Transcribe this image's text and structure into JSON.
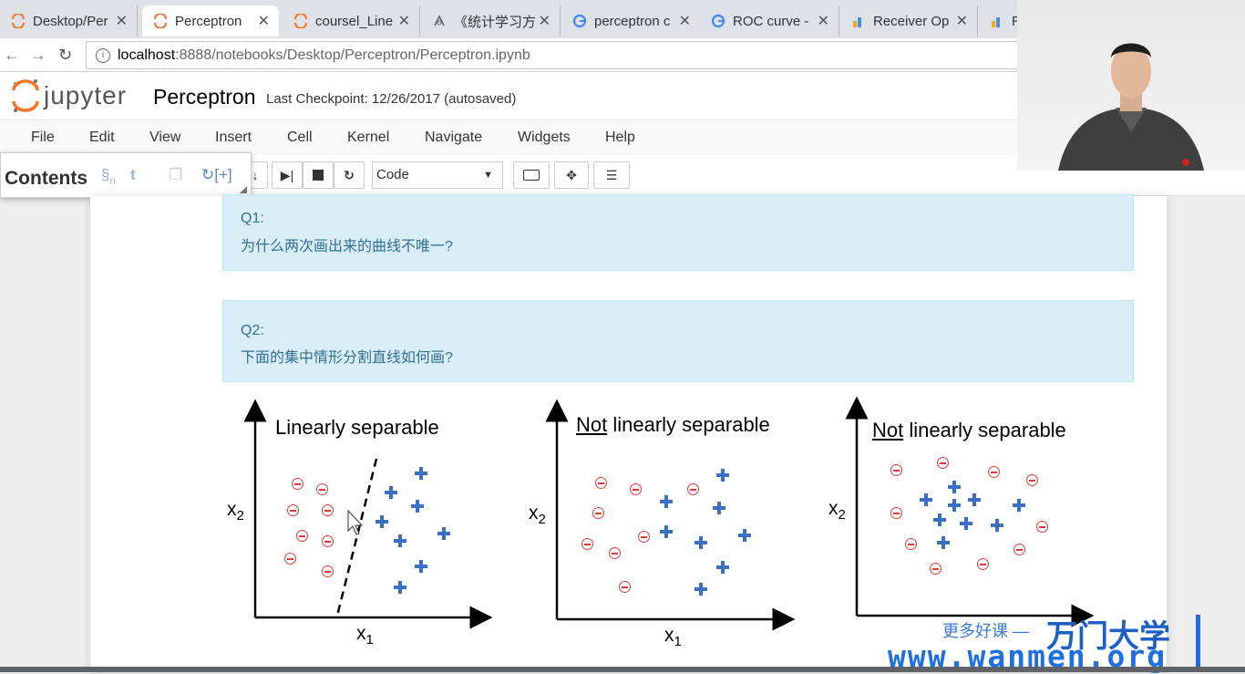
{
  "browser": {
    "tabs": [
      {
        "label": "Desktop/Per",
        "icon": "jupyter-icon",
        "active": false
      },
      {
        "label": "Perceptron",
        "icon": "jupyter-icon",
        "active": true
      },
      {
        "label": "coursel_Line",
        "icon": "jupyter-icon",
        "active": false
      },
      {
        "label": "《统计学习方",
        "icon": "book-icon",
        "active": false
      },
      {
        "label": "perceptron c",
        "icon": "google-icon",
        "active": false
      },
      {
        "label": "ROC curve -",
        "icon": "google-icon",
        "active": false
      },
      {
        "label": "Receiver Op",
        "icon": "chart-icon",
        "active": false
      },
      {
        "label": "R",
        "icon": "chart-icon",
        "active": false
      }
    ],
    "url_host": "localhost",
    "url_rest": ":8888/notebooks/Desktop/Perceptron/Perceptron.ipynb"
  },
  "jupyter": {
    "logo_text": "jupyter",
    "notebook_name": "Perceptron",
    "checkpoint": "Last Checkpoint: 12/26/2017 (autosaved)",
    "menu": [
      "File",
      "Edit",
      "View",
      "Insert",
      "Cell",
      "Kernel",
      "Navigate",
      "Widgets",
      "Help"
    ],
    "cell_type": "Code",
    "contents_title": "Contents",
    "contents_refresh": "↻[+]"
  },
  "cells": {
    "q1_label": "Q1:",
    "q1_text": "为什么两次画出来的曲线不唯一?",
    "q2_label": "Q2:",
    "q2_text": "下面的集中情形分割直线如何画?"
  },
  "figure": {
    "panels": [
      {
        "title": "Linearly separable",
        "ylabel": "x",
        "ysub": "2",
        "xlabel": "x",
        "xsub": "1"
      },
      {
        "title_underlined": "Not",
        "title_rest": " linearly separable",
        "ylabel": "x",
        "ysub": "2",
        "xlabel": "x",
        "xsub": "1"
      },
      {
        "title_underlined": "Not",
        "title_rest": " linearly separable",
        "ylabel": "x",
        "ysub": "2"
      }
    ],
    "colors": {
      "minus": "#e03a3a",
      "plus": "#3b6fc4"
    }
  },
  "watermark": {
    "small": "更多好课 —",
    "brand": "万门大学",
    "url": "www.wanmen.org"
  }
}
